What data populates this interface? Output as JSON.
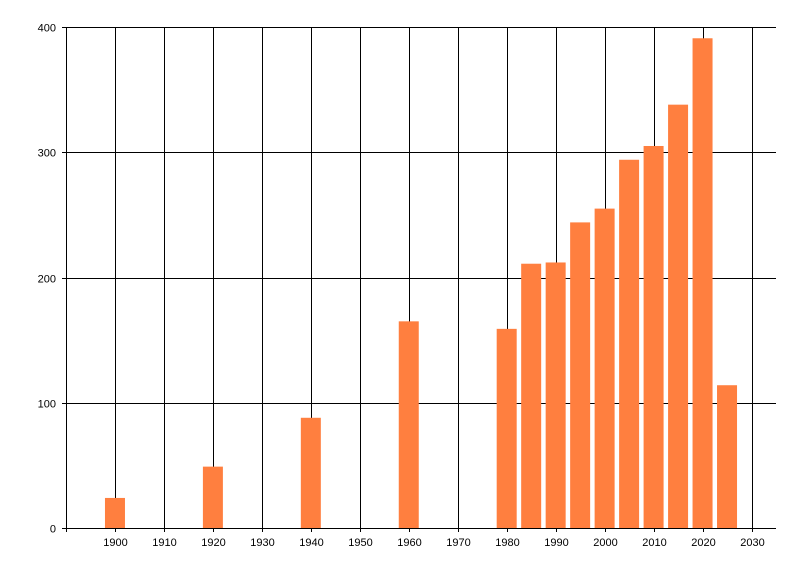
{
  "chart_data": {
    "type": "bar",
    "title": "",
    "xlabel": "",
    "ylabel": "",
    "x": [
      1900,
      1920,
      1940,
      1960,
      1980,
      1985,
      1990,
      1995,
      2000,
      2005,
      2010,
      2015,
      2020,
      2025
    ],
    "values": [
      24,
      49,
      88,
      165,
      159,
      211,
      212,
      244,
      255,
      294,
      305,
      338,
      391,
      114
    ],
    "xlim": [
      1890,
      2035
    ],
    "ylim": [
      0,
      400
    ],
    "x_ticks": [
      1900,
      1910,
      1920,
      1930,
      1940,
      1950,
      1960,
      1970,
      1980,
      1990,
      2000,
      2010,
      2020,
      2030
    ],
    "y_ticks": [
      0,
      100,
      200,
      300,
      400
    ],
    "grid": true,
    "legend": "none",
    "bar_color": "#ff7f3f",
    "grid_color": "#000000"
  }
}
